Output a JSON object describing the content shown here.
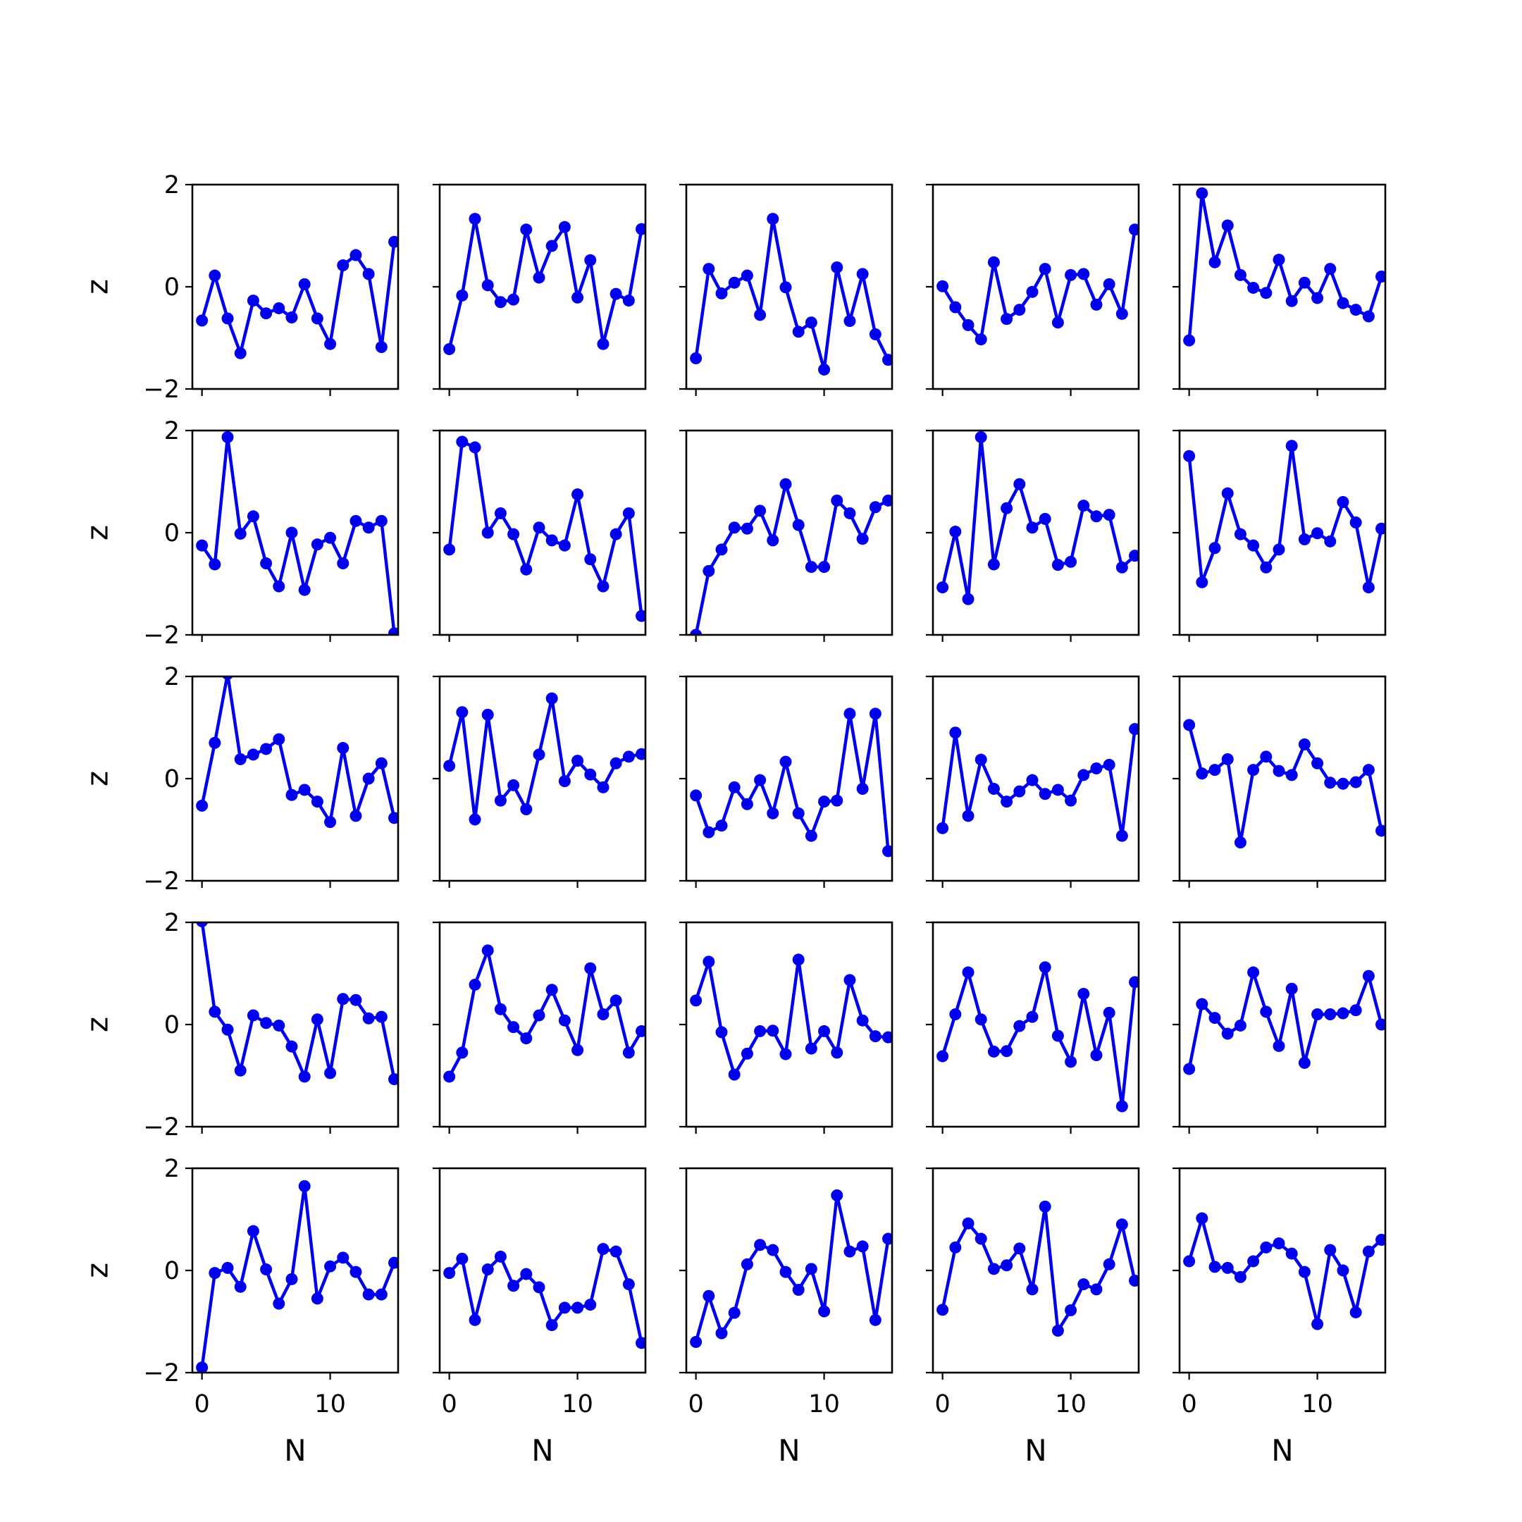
{
  "chart_data": {
    "type": "line",
    "layout": "5x5 grid of small multiples, shared x and y axes",
    "line_color": "#0000ee",
    "marker": "circle",
    "xlabel": "N",
    "ylabel": "z",
    "xlim": [
      -0.75,
      15.3
    ],
    "ylim": [
      -2,
      2
    ],
    "xticks": [
      0,
      10
    ],
    "yticks": [
      -2,
      0,
      2
    ],
    "tick_labels": {
      "x": [
        "0",
        "10"
      ],
      "y": [
        "−2",
        "0",
        "2"
      ]
    },
    "grid": false,
    "x": [
      0,
      1,
      2,
      3,
      4,
      5,
      6,
      7,
      8,
      9,
      10,
      11,
      12,
      13,
      14,
      15
    ],
    "panels": [
      [
        -0.66,
        0.22,
        -0.62,
        -1.3,
        -0.27,
        -0.52,
        -0.42,
        -0.6,
        0.05,
        -0.62,
        -1.12,
        0.42,
        0.62,
        0.25,
        -1.18,
        0.88
      ],
      [
        -1.22,
        -0.17,
        1.33,
        0.03,
        -0.3,
        -0.25,
        1.12,
        0.18,
        0.8,
        1.17,
        -0.21,
        0.52,
        -1.12,
        -0.14,
        -0.27,
        1.13
      ],
      [
        -1.4,
        0.35,
        -0.13,
        0.08,
        0.22,
        -0.55,
        1.33,
        -0.01,
        -0.88,
        -0.7,
        -1.62,
        0.38,
        -0.67,
        0.25,
        -0.93,
        -1.43
      ],
      [
        0.01,
        -0.4,
        -0.75,
        -1.03,
        0.48,
        -0.63,
        -0.45,
        -0.1,
        0.35,
        -0.7,
        0.23,
        0.25,
        -0.35,
        0.05,
        -0.53,
        1.12
      ],
      [
        -1.05,
        1.83,
        0.48,
        1.2,
        0.23,
        -0.02,
        -0.12,
        0.53,
        -0.28,
        0.08,
        -0.22,
        0.35,
        -0.32,
        -0.45,
        -0.58,
        0.2
      ],
      [
        -0.25,
        -0.62,
        1.87,
        -0.02,
        0.32,
        -0.6,
        -1.05,
        0.0,
        -1.12,
        -0.23,
        -0.1,
        -0.6,
        0.23,
        0.1,
        0.23,
        -1.97
      ],
      [
        -0.33,
        1.78,
        1.67,
        0.0,
        0.38,
        -0.03,
        -0.72,
        0.1,
        -0.15,
        -0.25,
        0.75,
        -0.52,
        -1.05,
        -0.03,
        0.38,
        -1.63
      ],
      [
        -2.0,
        -0.75,
        -0.33,
        0.1,
        0.08,
        0.43,
        -0.15,
        0.95,
        0.15,
        -0.67,
        -0.67,
        0.63,
        0.38,
        -0.12,
        0.5,
        0.63
      ],
      [
        -1.07,
        0.02,
        -1.3,
        1.87,
        -0.62,
        0.48,
        0.95,
        0.1,
        0.27,
        -0.63,
        -0.57,
        0.53,
        0.32,
        0.35,
        -0.68,
        -0.45
      ],
      [
        1.5,
        -0.97,
        -0.3,
        0.77,
        -0.03,
        -0.25,
        -0.68,
        -0.33,
        1.7,
        -0.13,
        -0.01,
        -0.17,
        0.6,
        0.2,
        -1.07,
        0.08
      ],
      [
        -0.53,
        0.7,
        2.05,
        0.38,
        0.47,
        0.58,
        0.77,
        -0.32,
        -0.22,
        -0.45,
        -0.85,
        0.6,
        -0.73,
        0.0,
        0.3,
        -0.77
      ],
      [
        0.25,
        1.3,
        -0.8,
        1.25,
        -0.43,
        -0.13,
        -0.6,
        0.47,
        1.57,
        -0.05,
        0.35,
        0.08,
        -0.17,
        0.3,
        0.43,
        0.48
      ],
      [
        -0.33,
        -1.05,
        -0.92,
        -0.17,
        -0.5,
        -0.03,
        -0.68,
        0.33,
        -0.68,
        -1.12,
        -0.45,
        -0.43,
        1.27,
        -0.2,
        1.27,
        -1.42
      ],
      [
        -0.97,
        0.9,
        -0.73,
        0.37,
        -0.2,
        -0.45,
        -0.25,
        -0.03,
        -0.3,
        -0.22,
        -0.43,
        0.07,
        0.2,
        0.27,
        -1.12,
        0.97
      ],
      [
        1.05,
        0.1,
        0.17,
        0.38,
        -1.25,
        0.17,
        0.43,
        0.15,
        0.07,
        0.67,
        0.3,
        -0.08,
        -0.1,
        -0.07,
        0.17,
        -1.02
      ],
      [
        2.02,
        0.25,
        -0.1,
        -0.9,
        0.18,
        0.03,
        -0.02,
        -0.43,
        -1.02,
        0.1,
        -0.95,
        0.5,
        0.48,
        0.12,
        0.15,
        -1.07
      ],
      [
        -1.02,
        -0.55,
        0.78,
        1.45,
        0.3,
        -0.05,
        -0.27,
        0.18,
        0.68,
        0.08,
        -0.5,
        1.1,
        0.2,
        0.47,
        -0.55,
        -0.13
      ],
      [
        0.47,
        1.23,
        -0.15,
        -0.98,
        -0.57,
        -0.13,
        -0.12,
        -0.58,
        1.27,
        -0.47,
        -0.13,
        -0.55,
        0.87,
        0.08,
        -0.23,
        -0.25
      ],
      [
        -0.62,
        0.2,
        1.02,
        0.1,
        -0.53,
        -0.52,
        -0.03,
        0.15,
        1.12,
        -0.22,
        -0.73,
        0.6,
        -0.6,
        0.23,
        -1.6,
        0.83
      ],
      [
        -0.87,
        0.4,
        0.13,
        -0.18,
        -0.02,
        1.02,
        0.25,
        -0.42,
        0.7,
        -0.75,
        0.2,
        0.2,
        0.22,
        0.28,
        0.95,
        0.0
      ],
      [
        -1.9,
        -0.05,
        0.05,
        -0.32,
        0.77,
        0.02,
        -0.65,
        -0.17,
        1.65,
        -0.55,
        0.08,
        0.25,
        -0.03,
        -0.47,
        -0.47,
        0.15
      ],
      [
        -0.05,
        0.23,
        -0.97,
        0.02,
        0.27,
        -0.3,
        -0.07,
        -0.33,
        -1.07,
        -0.73,
        -0.73,
        -0.67,
        0.42,
        0.37,
        -0.27,
        -1.42
      ],
      [
        -1.4,
        -0.5,
        -1.23,
        -0.83,
        0.12,
        0.5,
        0.4,
        -0.03,
        -0.38,
        0.03,
        -0.8,
        1.47,
        0.37,
        0.47,
        -0.97,
        0.62
      ],
      [
        -0.77,
        0.45,
        0.92,
        0.62,
        0.03,
        0.1,
        0.43,
        -0.37,
        1.25,
        -1.18,
        -0.78,
        -0.27,
        -0.37,
        0.12,
        0.9,
        -0.2
      ],
      [
        0.18,
        1.02,
        0.07,
        0.05,
        -0.13,
        0.18,
        0.45,
        0.53,
        0.33,
        -0.03,
        -1.05,
        0.4,
        0.0,
        -0.82,
        0.37,
        0.6
      ]
    ]
  }
}
